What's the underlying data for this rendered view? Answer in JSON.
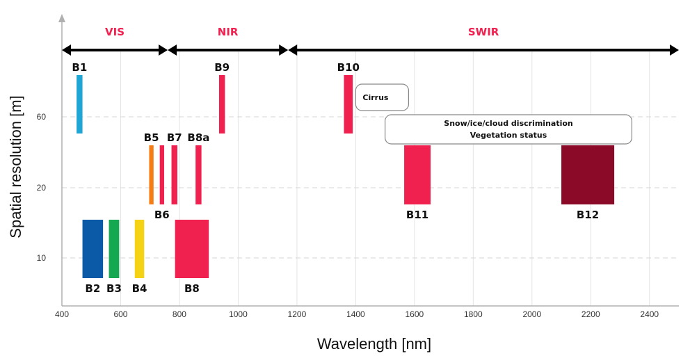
{
  "chart_data": {
    "type": "bar",
    "title": "",
    "xlabel": "Wavelength [nm]",
    "ylabel": "Spatial resolution [m]",
    "xlim": [
      400,
      2500
    ],
    "x_ticks": [
      400,
      600,
      800,
      1000,
      1200,
      1400,
      1600,
      1800,
      2000,
      2200,
      2400
    ],
    "y_ticks": [
      10,
      20,
      60
    ],
    "grid": true,
    "accent_color": "#f0204f",
    "regions": [
      {
        "label": "VIS",
        "x_start": 400,
        "x_end": 760
      },
      {
        "label": "NIR",
        "x_start": 760,
        "x_end": 1170
      },
      {
        "label": "SWIR",
        "x_start": 1170,
        "x_end": 2500
      }
    ],
    "bands": [
      {
        "name": "B1",
        "x_start": 450,
        "x_end": 470,
        "resolution": 60,
        "color": "#1ea7d6",
        "label_pos": "top"
      },
      {
        "name": "B2",
        "x_start": 470,
        "x_end": 540,
        "resolution": 10,
        "color": "#0a5aa8",
        "label_pos": "bottom"
      },
      {
        "name": "B3",
        "x_start": 560,
        "x_end": 595,
        "resolution": 10,
        "color": "#14a850",
        "label_pos": "bottom"
      },
      {
        "name": "B4",
        "x_start": 648,
        "x_end": 680,
        "resolution": 10,
        "color": "#f5d214",
        "label_pos": "bottom"
      },
      {
        "name": "B5",
        "x_start": 697,
        "x_end": 712,
        "resolution": 20,
        "color": "#f57d14",
        "label_pos": "top"
      },
      {
        "name": "B6",
        "x_start": 733,
        "x_end": 748,
        "resolution": 20,
        "color": "#f0204f",
        "label_pos": "bottom"
      },
      {
        "name": "B7",
        "x_start": 773,
        "x_end": 793,
        "resolution": 20,
        "color": "#f0204f",
        "label_pos": "top"
      },
      {
        "name": "B8",
        "x_start": 785,
        "x_end": 900,
        "resolution": 10,
        "color": "#f0204f",
        "label_pos": "bottom"
      },
      {
        "name": "B8a",
        "x_start": 855,
        "x_end": 875,
        "resolution": 20,
        "color": "#f0204f",
        "label_pos": "top"
      },
      {
        "name": "B9",
        "x_start": 935,
        "x_end": 955,
        "resolution": 60,
        "color": "#f0204f",
        "label_pos": "top"
      },
      {
        "name": "B10",
        "x_start": 1360,
        "x_end": 1390,
        "resolution": 60,
        "color": "#f0204f",
        "label_pos": "top"
      },
      {
        "name": "B11",
        "x_start": 1565,
        "x_end": 1655,
        "resolution": 20,
        "color": "#f0204f",
        "label_pos": "bottom"
      },
      {
        "name": "B12",
        "x_start": 2100,
        "x_end": 2280,
        "resolution": 20,
        "color": "#8b0a28",
        "label_pos": "bottom"
      }
    ],
    "annotations": [
      {
        "text_lines": [
          "Cirrus"
        ],
        "x_start": 1400,
        "x_end": 1580
      },
      {
        "text_lines": [
          "Snow/ice/cloud discrimination",
          "Vegetation status"
        ],
        "x_start": 1500,
        "x_end": 2340
      }
    ]
  }
}
